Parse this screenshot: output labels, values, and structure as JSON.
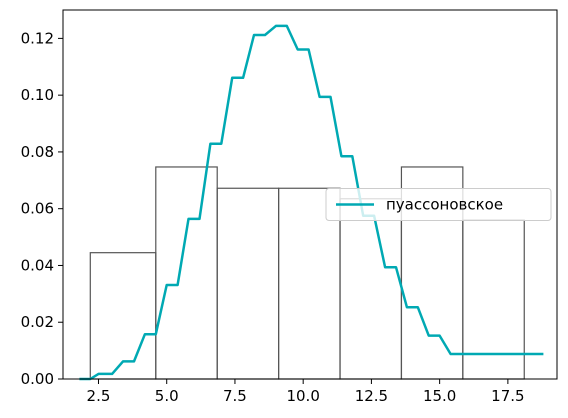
{
  "chart_data": {
    "type": "bar",
    "title": "",
    "xlabel": "",
    "ylabel": "",
    "xlim": [
      1.2,
      19.3
    ],
    "ylim": [
      0,
      0.13
    ],
    "grid": false,
    "x_ticks": [
      2.5,
      5.0,
      7.5,
      10.0,
      12.5,
      15.0,
      17.5
    ],
    "x_tick_labels": [
      "2.5",
      "5.0",
      "7.5",
      "10.0",
      "12.5",
      "15.0",
      "17.5"
    ],
    "y_ticks": [
      0.0,
      0.02,
      0.04,
      0.06,
      0.08,
      0.1,
      0.12
    ],
    "y_tick_labels": [
      "0.00",
      "0.02",
      "0.04",
      "0.06",
      "0.08",
      "0.10",
      "0.12"
    ],
    "histogram": {
      "bin_edges": [
        2.2,
        4.6,
        6.85,
        9.1,
        11.35,
        13.6,
        15.85,
        18.1
      ],
      "values": [
        0.0445,
        0.0747,
        0.0672,
        0.0672,
        0.0635,
        0.0747,
        0.056
      ],
      "edge_color": "#555555",
      "fill": "none"
    },
    "series": [
      {
        "name": "пуассоновское",
        "type": "line",
        "color": "#00a9b3",
        "x": [
          1.8,
          2.2,
          2.5,
          3.0,
          3.4,
          3.8,
          4.2,
          4.6,
          5.0,
          5.4,
          5.8,
          6.2,
          6.6,
          7.0,
          7.4,
          7.8,
          8.2,
          8.6,
          9.0,
          9.4,
          9.8,
          10.2,
          10.6,
          11.0,
          11.4,
          11.8,
          12.2,
          12.6,
          13.0,
          13.4,
          13.8,
          14.2,
          14.6,
          15.0,
          15.4,
          15.8,
          16.2,
          16.6,
          17.0,
          17.4,
          17.8,
          18.2,
          18.8
        ],
        "y": [
          0.0,
          0.0,
          0.0018,
          0.0018,
          0.0062,
          0.0062,
          0.0158,
          0.0158,
          0.0331,
          0.0331,
          0.0564,
          0.0564,
          0.0829,
          0.0829,
          0.1061,
          0.1061,
          0.1212,
          0.1212,
          0.1244,
          0.1244,
          0.1161,
          0.1161,
          0.0994,
          0.0994,
          0.0785,
          0.0785,
          0.0575,
          0.0575,
          0.0394,
          0.0394,
          0.0253,
          0.0253,
          0.0153,
          0.0153,
          0.0088,
          0.0088,
          0.0088,
          0.0088,
          0.0088,
          0.0088,
          0.0088,
          0.0088,
          0.0088
        ]
      }
    ],
    "legend": {
      "placement": "center-right",
      "entries": [
        "пуассоновское"
      ]
    }
  }
}
